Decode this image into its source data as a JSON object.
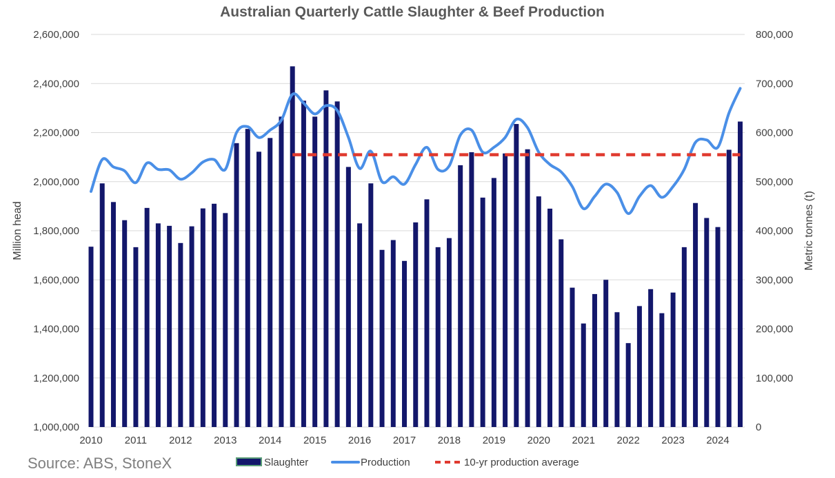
{
  "chart_data": {
    "type": "bar",
    "title": "Australian Quarterly Cattle Slaughter & Beef Production",
    "ylabel_left": "Million head",
    "ylabel_right": "Metric tonnes (t)",
    "source": "Source: ABS, StoneX",
    "ylim_left": [
      1000000,
      2600000
    ],
    "ylim_right": [
      0,
      800000
    ],
    "xlim": [
      2010,
      2024.6
    ],
    "grid": "horizontal",
    "legend_position": "bottom",
    "colors": {
      "slaughter": "#13176b",
      "production": "#4a8fe7",
      "average": "#e03a2f"
    },
    "x_ticks": [
      "2010",
      "2011",
      "2012",
      "2013",
      "2014",
      "2015",
      "2016",
      "2017",
      "2018",
      "2019",
      "2020",
      "2021",
      "2022",
      "2023",
      "2024"
    ],
    "y_ticks_left": [
      "1,000,000",
      "1,200,000",
      "1,400,000",
      "1,600,000",
      "1,800,000",
      "2,000,000",
      "2,200,000",
      "2,400,000",
      "2,600,000"
    ],
    "y_ticks_right": [
      "0",
      "100,000",
      "200,000",
      "300,000",
      "400,000",
      "500,000",
      "600,000",
      "700,000",
      "800,000"
    ],
    "legend": [
      "Slaughter",
      "Production",
      "10-yr production average"
    ],
    "series": [
      {
        "name": "Slaughter",
        "type": "bar",
        "axis": "left",
        "x": [
          2010.0,
          2010.25,
          2010.5,
          2010.75,
          2011.0,
          2011.25,
          2011.5,
          2011.75,
          2012.0,
          2012.25,
          2012.5,
          2012.75,
          2013.0,
          2013.25,
          2013.5,
          2013.75,
          2014.0,
          2014.25,
          2014.5,
          2014.75,
          2015.0,
          2015.25,
          2015.5,
          2015.75,
          2016.0,
          2016.25,
          2016.5,
          2016.75,
          2017.0,
          2017.25,
          2017.5,
          2017.75,
          2018.0,
          2018.25,
          2018.5,
          2018.75,
          2019.0,
          2019.25,
          2019.5,
          2019.75,
          2020.0,
          2020.25,
          2020.5,
          2020.75,
          2021.0,
          2021.25,
          2021.5,
          2021.75,
          2022.0,
          2022.25,
          2022.5,
          2022.75,
          2023.0,
          2023.25,
          2023.5,
          2023.75,
          2024.0,
          2024.25,
          2024.5
        ],
        "values": [
          1735000,
          1993000,
          1917000,
          1843000,
          1733000,
          1893000,
          1830000,
          1820000,
          1750000,
          1818000,
          1891000,
          1910000,
          1872000,
          2157000,
          2215000,
          2122000,
          2178000,
          2265000,
          2470000,
          2330000,
          2265000,
          2372000,
          2327000,
          2060000,
          1830000,
          1993000,
          1722000,
          1762000,
          1677000,
          1834000,
          1928000,
          1733000,
          1770000,
          2067000,
          2120000,
          1935000,
          2015000,
          2115000,
          2235000,
          2132000,
          1940000,
          1890000,
          1765000,
          1568000,
          1422000,
          1542000,
          1600000,
          1468000,
          1342000,
          1493000,
          1562000,
          1464000,
          1548000,
          1733000,
          1913000,
          1852000,
          1815000,
          2130000,
          2245000
        ]
      },
      {
        "name": "Production",
        "type": "line",
        "axis": "right",
        "x": [
          2010.0,
          2010.25,
          2010.5,
          2010.75,
          2011.0,
          2011.25,
          2011.5,
          2011.75,
          2012.0,
          2012.25,
          2012.5,
          2012.75,
          2013.0,
          2013.25,
          2013.5,
          2013.75,
          2014.0,
          2014.25,
          2014.5,
          2014.75,
          2015.0,
          2015.25,
          2015.5,
          2015.75,
          2016.0,
          2016.25,
          2016.5,
          2016.75,
          2017.0,
          2017.25,
          2017.5,
          2017.75,
          2018.0,
          2018.25,
          2018.5,
          2018.75,
          2019.0,
          2019.25,
          2019.5,
          2019.75,
          2020.0,
          2020.25,
          2020.5,
          2020.75,
          2021.0,
          2021.25,
          2021.5,
          2021.75,
          2022.0,
          2022.25,
          2022.5,
          2022.75,
          2023.0,
          2023.25,
          2023.5,
          2023.75,
          2024.0,
          2024.25,
          2024.5
        ],
        "values": [
          480000,
          545000,
          530000,
          522000,
          498000,
          538000,
          525000,
          524000,
          505000,
          518000,
          540000,
          545000,
          525000,
          600000,
          612000,
          590000,
          605000,
          625000,
          678000,
          660000,
          638000,
          655000,
          645000,
          590000,
          527000,
          562000,
          500000,
          510000,
          495000,
          535000,
          570000,
          525000,
          532000,
          595000,
          605000,
          560000,
          570000,
          590000,
          627000,
          610000,
          560000,
          535000,
          520000,
          490000,
          445000,
          470000,
          495000,
          478000,
          435000,
          470000,
          492000,
          468000,
          490000,
          525000,
          580000,
          585000,
          570000,
          640000,
          690000
        ]
      },
      {
        "name": "10-yr production average",
        "type": "line",
        "axis": "right",
        "x": [
          2014.5,
          2024.5
        ],
        "values": [
          555000,
          555000
        ]
      }
    ]
  }
}
